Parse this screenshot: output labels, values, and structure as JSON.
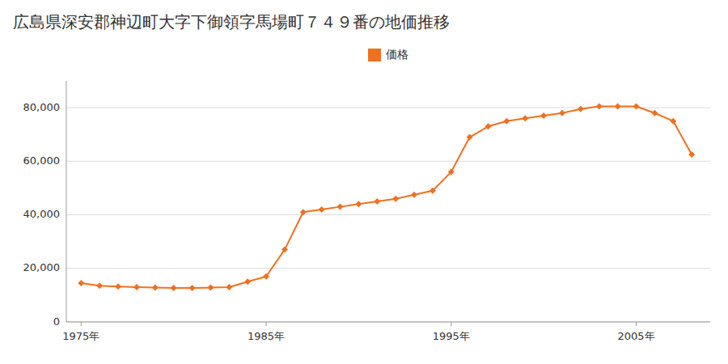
{
  "chart_data": {
    "type": "line",
    "title": "広島県深安郡神辺町大字下御領字馬場町７４９番の地価推移",
    "x": [
      1975,
      1976,
      1977,
      1978,
      1979,
      1980,
      1981,
      1982,
      1983,
      1984,
      1985,
      1986,
      1987,
      1988,
      1989,
      1990,
      1991,
      1992,
      1993,
      1994,
      1995,
      1996,
      1997,
      1998,
      1999,
      2000,
      2001,
      2002,
      2003,
      2004,
      2005,
      2006,
      2007,
      2008
    ],
    "series": [
      {
        "name": "価格",
        "color": "#f07020",
        "values": [
          14500,
          13500,
          13200,
          13000,
          12800,
          12700,
          12700,
          12800,
          13000,
          15000,
          17000,
          27000,
          41000,
          42000,
          43000,
          44000,
          45000,
          46000,
          47500,
          49000,
          56000,
          69000,
          73000,
          75000,
          76000,
          77000,
          78000,
          79500,
          80500,
          80500,
          80500,
          78000,
          75000,
          62500
        ]
      }
    ],
    "xlim": [
      1974.2,
      2009.0
    ],
    "xticks": [
      {
        "value": 1975,
        "label": "1975年"
      },
      {
        "value": 1985,
        "label": "1985年"
      },
      {
        "value": 1995,
        "label": "1995年"
      },
      {
        "value": 2005,
        "label": "2005年"
      }
    ],
    "ylim": [
      0,
      90000
    ],
    "yticks": [
      0,
      {
        "value": 20000,
        "label": "20,000"
      },
      {
        "value": 40000,
        "label": "40,000"
      },
      {
        "value": 60000,
        "label": "60,000"
      },
      {
        "value": 80000,
        "label": "80,000"
      }
    ],
    "grid": true,
    "marker": "diamond",
    "legend": "top"
  }
}
